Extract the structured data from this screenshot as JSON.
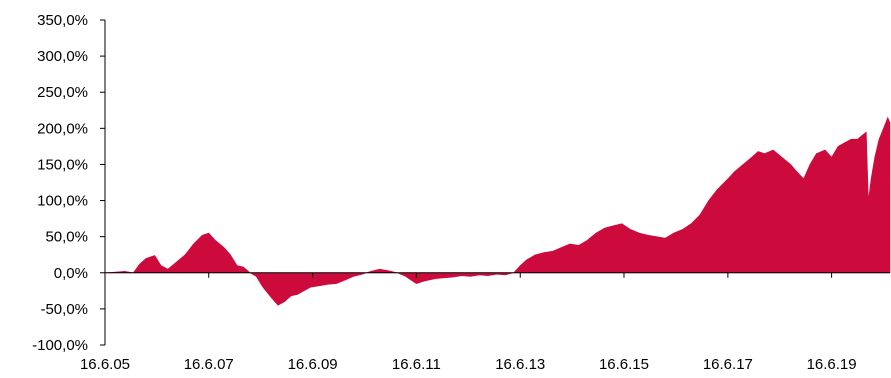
{
  "chart_data": {
    "type": "area",
    "title": "",
    "xlabel": "",
    "ylabel": "",
    "ylim": [
      -100,
      350
    ],
    "yticks": [
      {
        "value": -100,
        "label": "-100,0%"
      },
      {
        "value": -50,
        "label": "-50,0%"
      },
      {
        "value": 0,
        "label": "0,0%"
      },
      {
        "value": 50,
        "label": "50,0%"
      },
      {
        "value": 100,
        "label": "100,0%"
      },
      {
        "value": 150,
        "label": "150,0%"
      },
      {
        "value": 200,
        "label": "200,0%"
      },
      {
        "value": 250,
        "label": "250,0%"
      },
      {
        "value": 300,
        "label": "300,0%"
      },
      {
        "value": 350,
        "label": "350,0%"
      }
    ],
    "xlim": [
      "2005-06-16",
      "2020-07-31"
    ],
    "xticks": [
      {
        "value": "2005-06-16",
        "label": "16.6.05"
      },
      {
        "value": "2007-06-16",
        "label": "16.6.07"
      },
      {
        "value": "2009-06-16",
        "label": "16.6.09"
      },
      {
        "value": "2011-06-16",
        "label": "16.6.11"
      },
      {
        "value": "2013-06-16",
        "label": "16.6.13"
      },
      {
        "value": "2015-06-16",
        "label": "16.6.15"
      },
      {
        "value": "2017-06-16",
        "label": "16.6.17"
      },
      {
        "value": "2019-06-16",
        "label": "16.6.19"
      }
    ],
    "grid": false,
    "color": "#cc0a3c",
    "series": [
      {
        "x": [
          "2005-06-16",
          "2005-09-01",
          "2005-11-01",
          "2006-01-01",
          "2006-02-15",
          "2006-04-01",
          "2006-06-01",
          "2006-07-15",
          "2006-09-01",
          "2006-11-01",
          "2007-01-01",
          "2007-03-01",
          "2007-05-01",
          "2007-06-16",
          "2007-08-01",
          "2007-10-01",
          "2007-11-15",
          "2008-01-01",
          "2008-02-15",
          "2008-04-01",
          "2008-05-15",
          "2008-07-01",
          "2008-09-01",
          "2008-10-15",
          "2008-12-01",
          "2009-01-15",
          "2009-03-01",
          "2009-04-15",
          "2009-06-01",
          "2009-08-01",
          "2009-10-01",
          "2009-12-01",
          "2010-02-01",
          "2010-04-01",
          "2010-06-01",
          "2010-08-01",
          "2010-10-01",
          "2010-12-01",
          "2011-02-01",
          "2011-04-01",
          "2011-06-16",
          "2011-08-01",
          "2011-09-15",
          "2011-11-01",
          "2012-01-01",
          "2012-03-01",
          "2012-05-01",
          "2012-07-01",
          "2012-09-01",
          "2012-11-01",
          "2013-01-01",
          "2013-03-01",
          "2013-05-01",
          "2013-06-16",
          "2013-08-01",
          "2013-10-01",
          "2013-12-01",
          "2014-02-01",
          "2014-04-01",
          "2014-06-01",
          "2014-08-01",
          "2014-10-01",
          "2014-12-01",
          "2015-02-01",
          "2015-04-01",
          "2015-06-01",
          "2015-08-01",
          "2015-10-01",
          "2015-12-01",
          "2016-02-01",
          "2016-04-01",
          "2016-06-01",
          "2016-08-01",
          "2016-10-01",
          "2016-12-01",
          "2017-02-01",
          "2017-04-01",
          "2017-06-16",
          "2017-08-01",
          "2017-10-01",
          "2017-12-01",
          "2018-01-15",
          "2018-03-01",
          "2018-05-01",
          "2018-07-01",
          "2018-09-01",
          "2018-10-15",
          "2018-12-01",
          "2019-01-15",
          "2019-03-01",
          "2019-05-01",
          "2019-06-16",
          "2019-08-01",
          "2019-09-15",
          "2019-11-01",
          "2019-12-15",
          "2020-01-15",
          "2020-02-15",
          "2020-03-01",
          "2020-03-20",
          "2020-04-15",
          "2020-05-15",
          "2020-06-15",
          "2020-07-15",
          "2020-07-31"
        ],
        "values": [
          0,
          1,
          2,
          0,
          12,
          20,
          24,
          10,
          5,
          15,
          25,
          40,
          52,
          55,
          45,
          35,
          25,
          10,
          8,
          0,
          -5,
          -20,
          -35,
          -45,
          -40,
          -32,
          -30,
          -25,
          -20,
          -18,
          -16,
          -15,
          -10,
          -5,
          -2,
          2,
          5,
          3,
          0,
          -5,
          -15,
          -12,
          -10,
          -8,
          -7,
          -6,
          -4,
          -5,
          -3,
          -4,
          -2,
          -3,
          0,
          10,
          18,
          25,
          28,
          30,
          35,
          40,
          38,
          45,
          55,
          62,
          65,
          68,
          60,
          55,
          52,
          50,
          48,
          55,
          60,
          68,
          80,
          100,
          115,
          130,
          140,
          150,
          160,
          168,
          165,
          170,
          160,
          150,
          140,
          130,
          150,
          165,
          170,
          160,
          175,
          180,
          185,
          185,
          190,
          195,
          100,
          130,
          160,
          185,
          200,
          215,
          208
        ]
      }
    ]
  }
}
